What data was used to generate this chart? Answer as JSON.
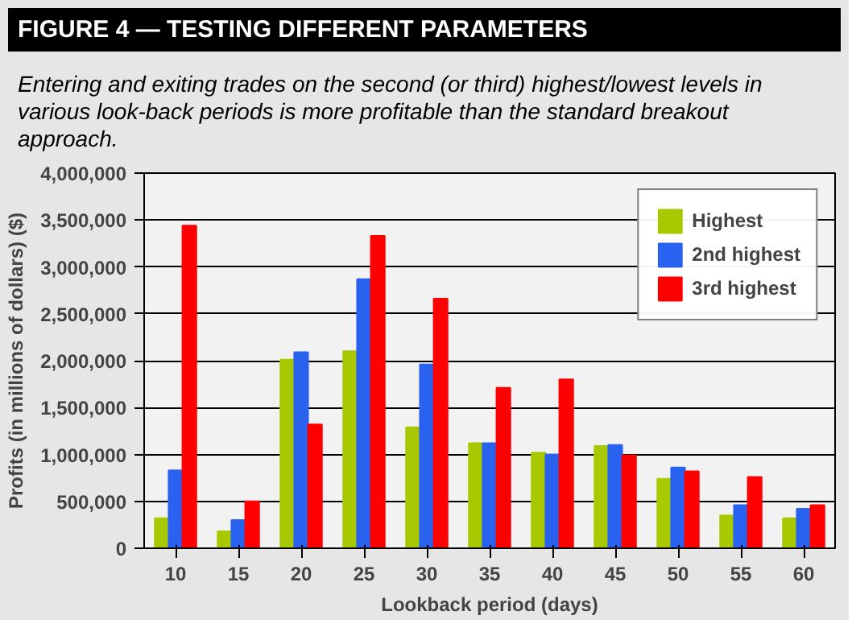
{
  "chart_data": {
    "type": "bar",
    "title": "FIGURE 4 — TESTING DIFFERENT PARAMETERS",
    "subtitle": "Entering and exiting trades on the second (or third) highest/lowest levels in various look-back periods is more profitable than the standard breakout approach.",
    "xlabel": "Lookback period (days)",
    "ylabel": "Profits (in millions of dollars) ($)",
    "categories": [
      "10",
      "15",
      "20",
      "25",
      "30",
      "35",
      "40",
      "45",
      "50",
      "55",
      "60"
    ],
    "series": [
      {
        "name": "Highest",
        "color": "#a8c800",
        "values": [
          320000,
          180000,
          2010000,
          2100000,
          1290000,
          1120000,
          1020000,
          1090000,
          740000,
          350000,
          320000
        ]
      },
      {
        "name": "2nd highest",
        "color": "#2a62f0",
        "values": [
          830000,
          300000,
          2090000,
          2870000,
          1960000,
          1120000,
          1000000,
          1100000,
          860000,
          460000,
          420000
        ]
      },
      {
        "name": "3rd highest",
        "color": "#ff0000",
        "values": [
          3440000,
          500000,
          1320000,
          3330000,
          2660000,
          1710000,
          1800000,
          990000,
          820000,
          760000,
          460000
        ]
      }
    ],
    "ylim": [
      0,
      4000000
    ],
    "yticks": [
      {
        "value": 0,
        "label": "0"
      },
      {
        "value": 500000,
        "label": "500,000"
      },
      {
        "value": 1000000,
        "label": "1,000,000"
      },
      {
        "value": 1500000,
        "label": "1,500,000"
      },
      {
        "value": 2000000,
        "label": "2,000,000"
      },
      {
        "value": 2500000,
        "label": "2,500,000"
      },
      {
        "value": 3000000,
        "label": "3,000,000"
      },
      {
        "value": 3500000,
        "label": "3,500,000"
      },
      {
        "value": 4000000,
        "label": "4,000,000"
      }
    ],
    "grid": "y",
    "legend": "top right"
  }
}
